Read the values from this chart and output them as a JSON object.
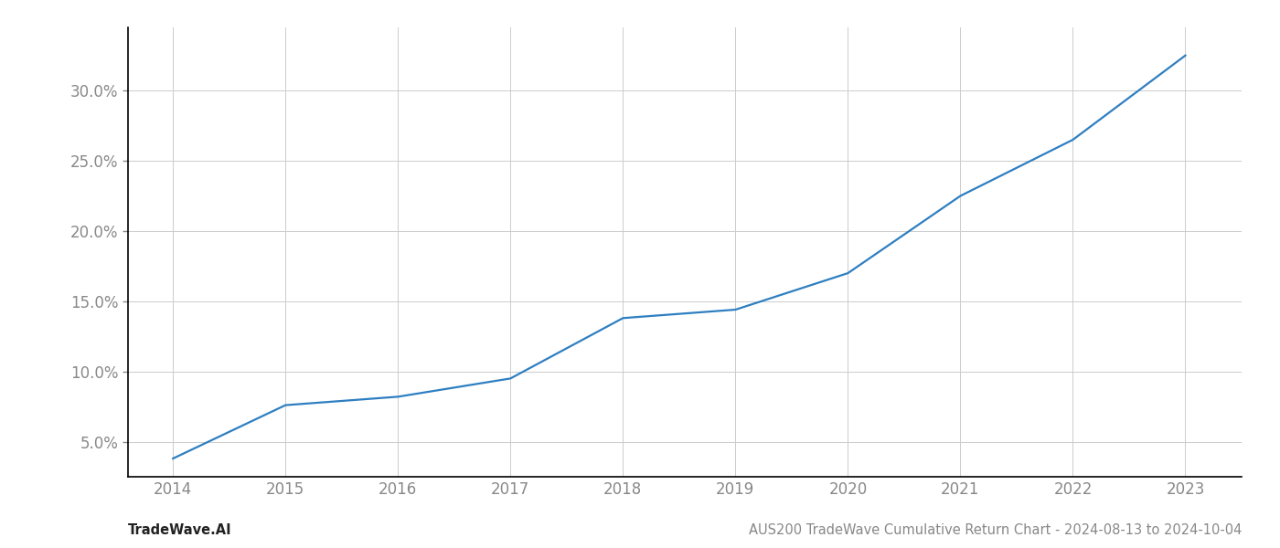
{
  "x_years": [
    2014,
    2015,
    2016,
    2017,
    2018,
    2019,
    2020,
    2021,
    2022,
    2023
  ],
  "y_values": [
    0.038,
    0.076,
    0.082,
    0.095,
    0.138,
    0.144,
    0.17,
    0.225,
    0.265,
    0.325
  ],
  "line_color": "#2e7fc1",
  "line_width": 1.6,
  "background_color": "#ffffff",
  "grid_color": "#cccccc",
  "yticks": [
    0.05,
    0.1,
    0.15,
    0.2,
    0.25,
    0.3
  ],
  "ytick_labels": [
    "5.0%",
    "10.0%",
    "15.0%",
    "20.0%",
    "25.0%",
    "30.0%"
  ],
  "xtick_labels": [
    "2014",
    "2015",
    "2016",
    "2017",
    "2018",
    "2019",
    "2020",
    "2021",
    "2022",
    "2023"
  ],
  "footer_left": "TradeWave.AI",
  "footer_right": "AUS200 TradeWave Cumulative Return Chart - 2024-08-13 to 2024-10-04",
  "xlim": [
    2013.6,
    2023.5
  ],
  "ylim": [
    0.025,
    0.345
  ],
  "tick_color": "#888888",
  "tick_fontsize": 12,
  "footer_fontsize": 10.5,
  "footer_left_color": "#222222",
  "footer_right_color": "#888888"
}
